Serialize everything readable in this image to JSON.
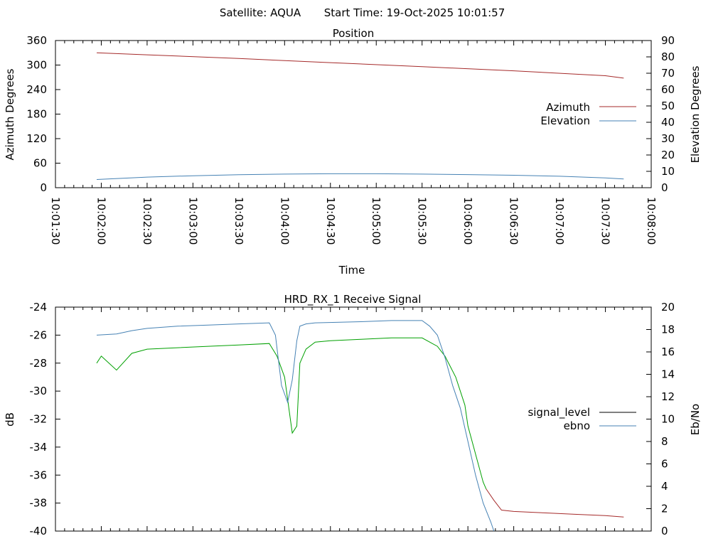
{
  "header": {
    "satellite": "Satellite: AQUA",
    "start_time": "Start Time: 19-Oct-2025 10:01:57"
  },
  "chart_data": [
    {
      "type": "line",
      "title": "Position",
      "xlabel": "Time",
      "ylabel": "Azimuth Degrees",
      "y2label": "Elevation Degrees",
      "x_ticks": [
        "10:01:30",
        "10:02:00",
        "10:02:30",
        "10:03:00",
        "10:03:30",
        "10:04:00",
        "10:04:30",
        "10:05:00",
        "10:05:30",
        "10:06:00",
        "10:06:30",
        "10:07:00",
        "10:07:30",
        "10:08:00"
      ],
      "xlim_seconds": [
        0,
        390
      ],
      "ylim": [
        0,
        360
      ],
      "y_ticks": [
        "0",
        "60",
        "120",
        "180",
        "240",
        "300",
        "360"
      ],
      "y2lim": [
        0,
        90
      ],
      "y2_ticks": [
        "0",
        "10",
        "20",
        "30",
        "40",
        "50",
        "60",
        "70",
        "80",
        "90"
      ],
      "legend_position": "right",
      "series": [
        {
          "name": "Azimuth",
          "axis": "left",
          "color": "#a52a2a",
          "x": [
            27,
            60,
            120,
            180,
            240,
            300,
            360,
            372
          ],
          "values": [
            330,
            325,
            316,
            306,
            296,
            286,
            274,
            268
          ]
        },
        {
          "name": "Elevation",
          "axis": "right",
          "color": "#4682b4",
          "x": [
            27,
            60,
            90,
            120,
            150,
            180,
            210,
            240,
            270,
            300,
            330,
            360,
            372
          ],
          "values": [
            5,
            6.5,
            7.3,
            7.9,
            8.3,
            8.5,
            8.5,
            8.3,
            8.0,
            7.6,
            7.0,
            6.0,
            5.3
          ]
        }
      ]
    },
    {
      "type": "line",
      "title": "HRD_RX_1 Receive Signal",
      "ylabel": "dB",
      "y2label": "Eb/No",
      "xlim_seconds": [
        0,
        390
      ],
      "ylim": [
        -40,
        -24
      ],
      "y_ticks": [
        "-24",
        "-26",
        "-28",
        "-30",
        "-32",
        "-34",
        "-36",
        "-38",
        "-40"
      ],
      "y2lim": [
        0,
        20
      ],
      "y2_ticks": [
        "0",
        "2",
        "4",
        "6",
        "8",
        "10",
        "12",
        "14",
        "16",
        "18",
        "20"
      ],
      "legend_position": "right",
      "series": [
        {
          "name": "signal_level",
          "axis": "left",
          "color": "#000000",
          "segments": [
            {
              "color": "#00a000",
              "x": [
                27,
                30,
                40,
                50,
                60,
                80,
                100,
                120,
                140,
                145,
                150,
                155,
                158,
                160,
                164,
                170,
                180,
                200,
                220,
                240,
                250,
                255,
                262,
                268,
                270,
                275,
                280,
                282
              ],
              "values": [
                -28.0,
                -27.5,
                -28.5,
                -27.3,
                -27.0,
                -26.9,
                -26.8,
                -26.7,
                -26.6,
                -27.5,
                -29.0,
                -33.0,
                -32.5,
                -28.0,
                -27.0,
                -26.5,
                -26.4,
                -26.3,
                -26.2,
                -26.2,
                -26.8,
                -27.5,
                -29.0,
                -31.0,
                -32.5,
                -34.5,
                -36.5,
                -37.0
              ]
            },
            {
              "color": "#a52a2a",
              "x": [
                282,
                287,
                292,
                300,
                320,
                340,
                360,
                372
              ],
              "values": [
                -37.0,
                -37.8,
                -38.5,
                -38.6,
                -38.7,
                -38.8,
                -38.9,
                -39.0
              ]
            }
          ]
        },
        {
          "name": "ebno",
          "axis": "right",
          "color": "#4682b4",
          "x": [
            27,
            40,
            50,
            60,
            80,
            100,
            120,
            140,
            144,
            148,
            152,
            155,
            158,
            160,
            164,
            170,
            200,
            220,
            240,
            245,
            250,
            255,
            260,
            265,
            270,
            275,
            280,
            285,
            287
          ],
          "values": [
            17.5,
            17.6,
            17.9,
            18.1,
            18.3,
            18.4,
            18.5,
            18.6,
            17.5,
            13.0,
            11.5,
            13.5,
            17.0,
            18.3,
            18.5,
            18.6,
            18.7,
            18.8,
            18.8,
            18.3,
            17.5,
            15.5,
            13.0,
            11.0,
            8.0,
            5.0,
            2.5,
            0.8,
            0
          ]
        }
      ]
    }
  ]
}
